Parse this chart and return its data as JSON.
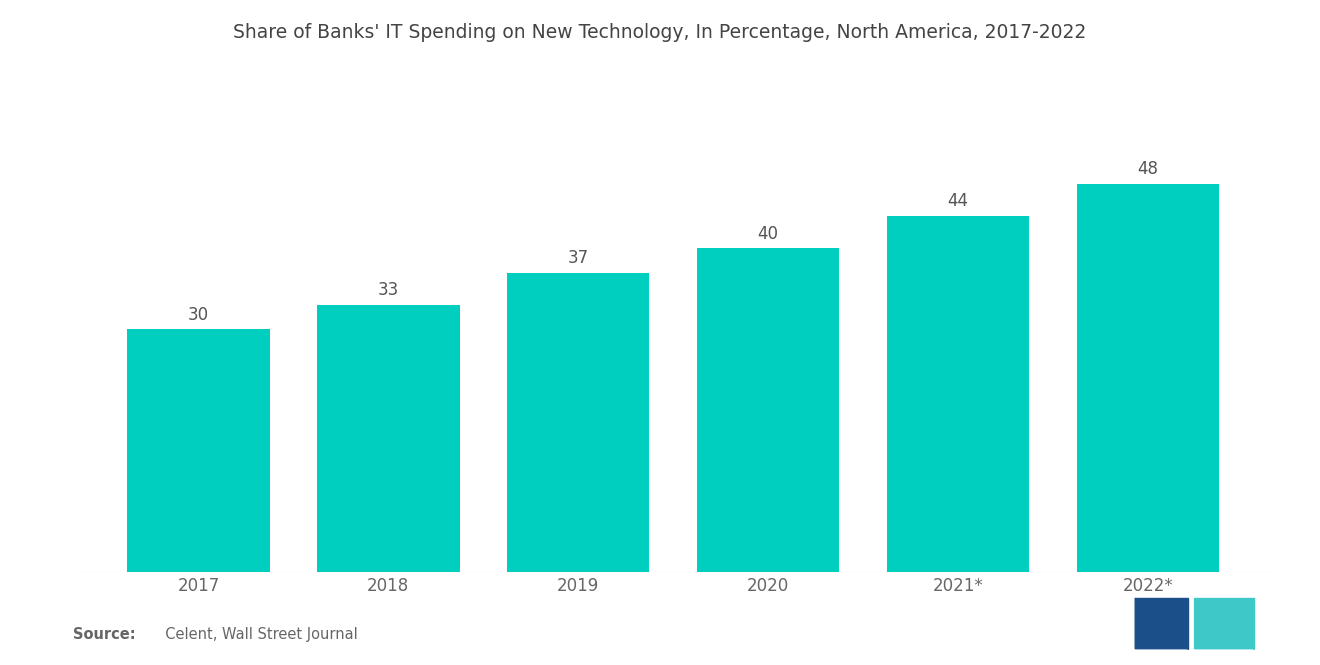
{
  "title": "Share of Banks' IT Spending on New Technology, In Percentage, North America, 2017-2022",
  "categories": [
    "2017",
    "2018",
    "2019",
    "2020",
    "2021*",
    "2022*"
  ],
  "values": [
    30,
    33,
    37,
    40,
    44,
    48
  ],
  "bar_color": "#00CFC0",
  "background_color": "#ffffff",
  "text_color": "#666666",
  "title_color": "#444444",
  "value_label_color": "#555555",
  "source_bold": "Source:",
  "source_rest": "  Celent, Wall Street Journal",
  "ylim": [
    0,
    60
  ],
  "bar_width": 0.75,
  "title_fontsize": 13.5,
  "tick_fontsize": 12,
  "value_fontsize": 12,
  "logo_color_left": "#1b4f8a",
  "logo_color_right": "#3ec8c8"
}
